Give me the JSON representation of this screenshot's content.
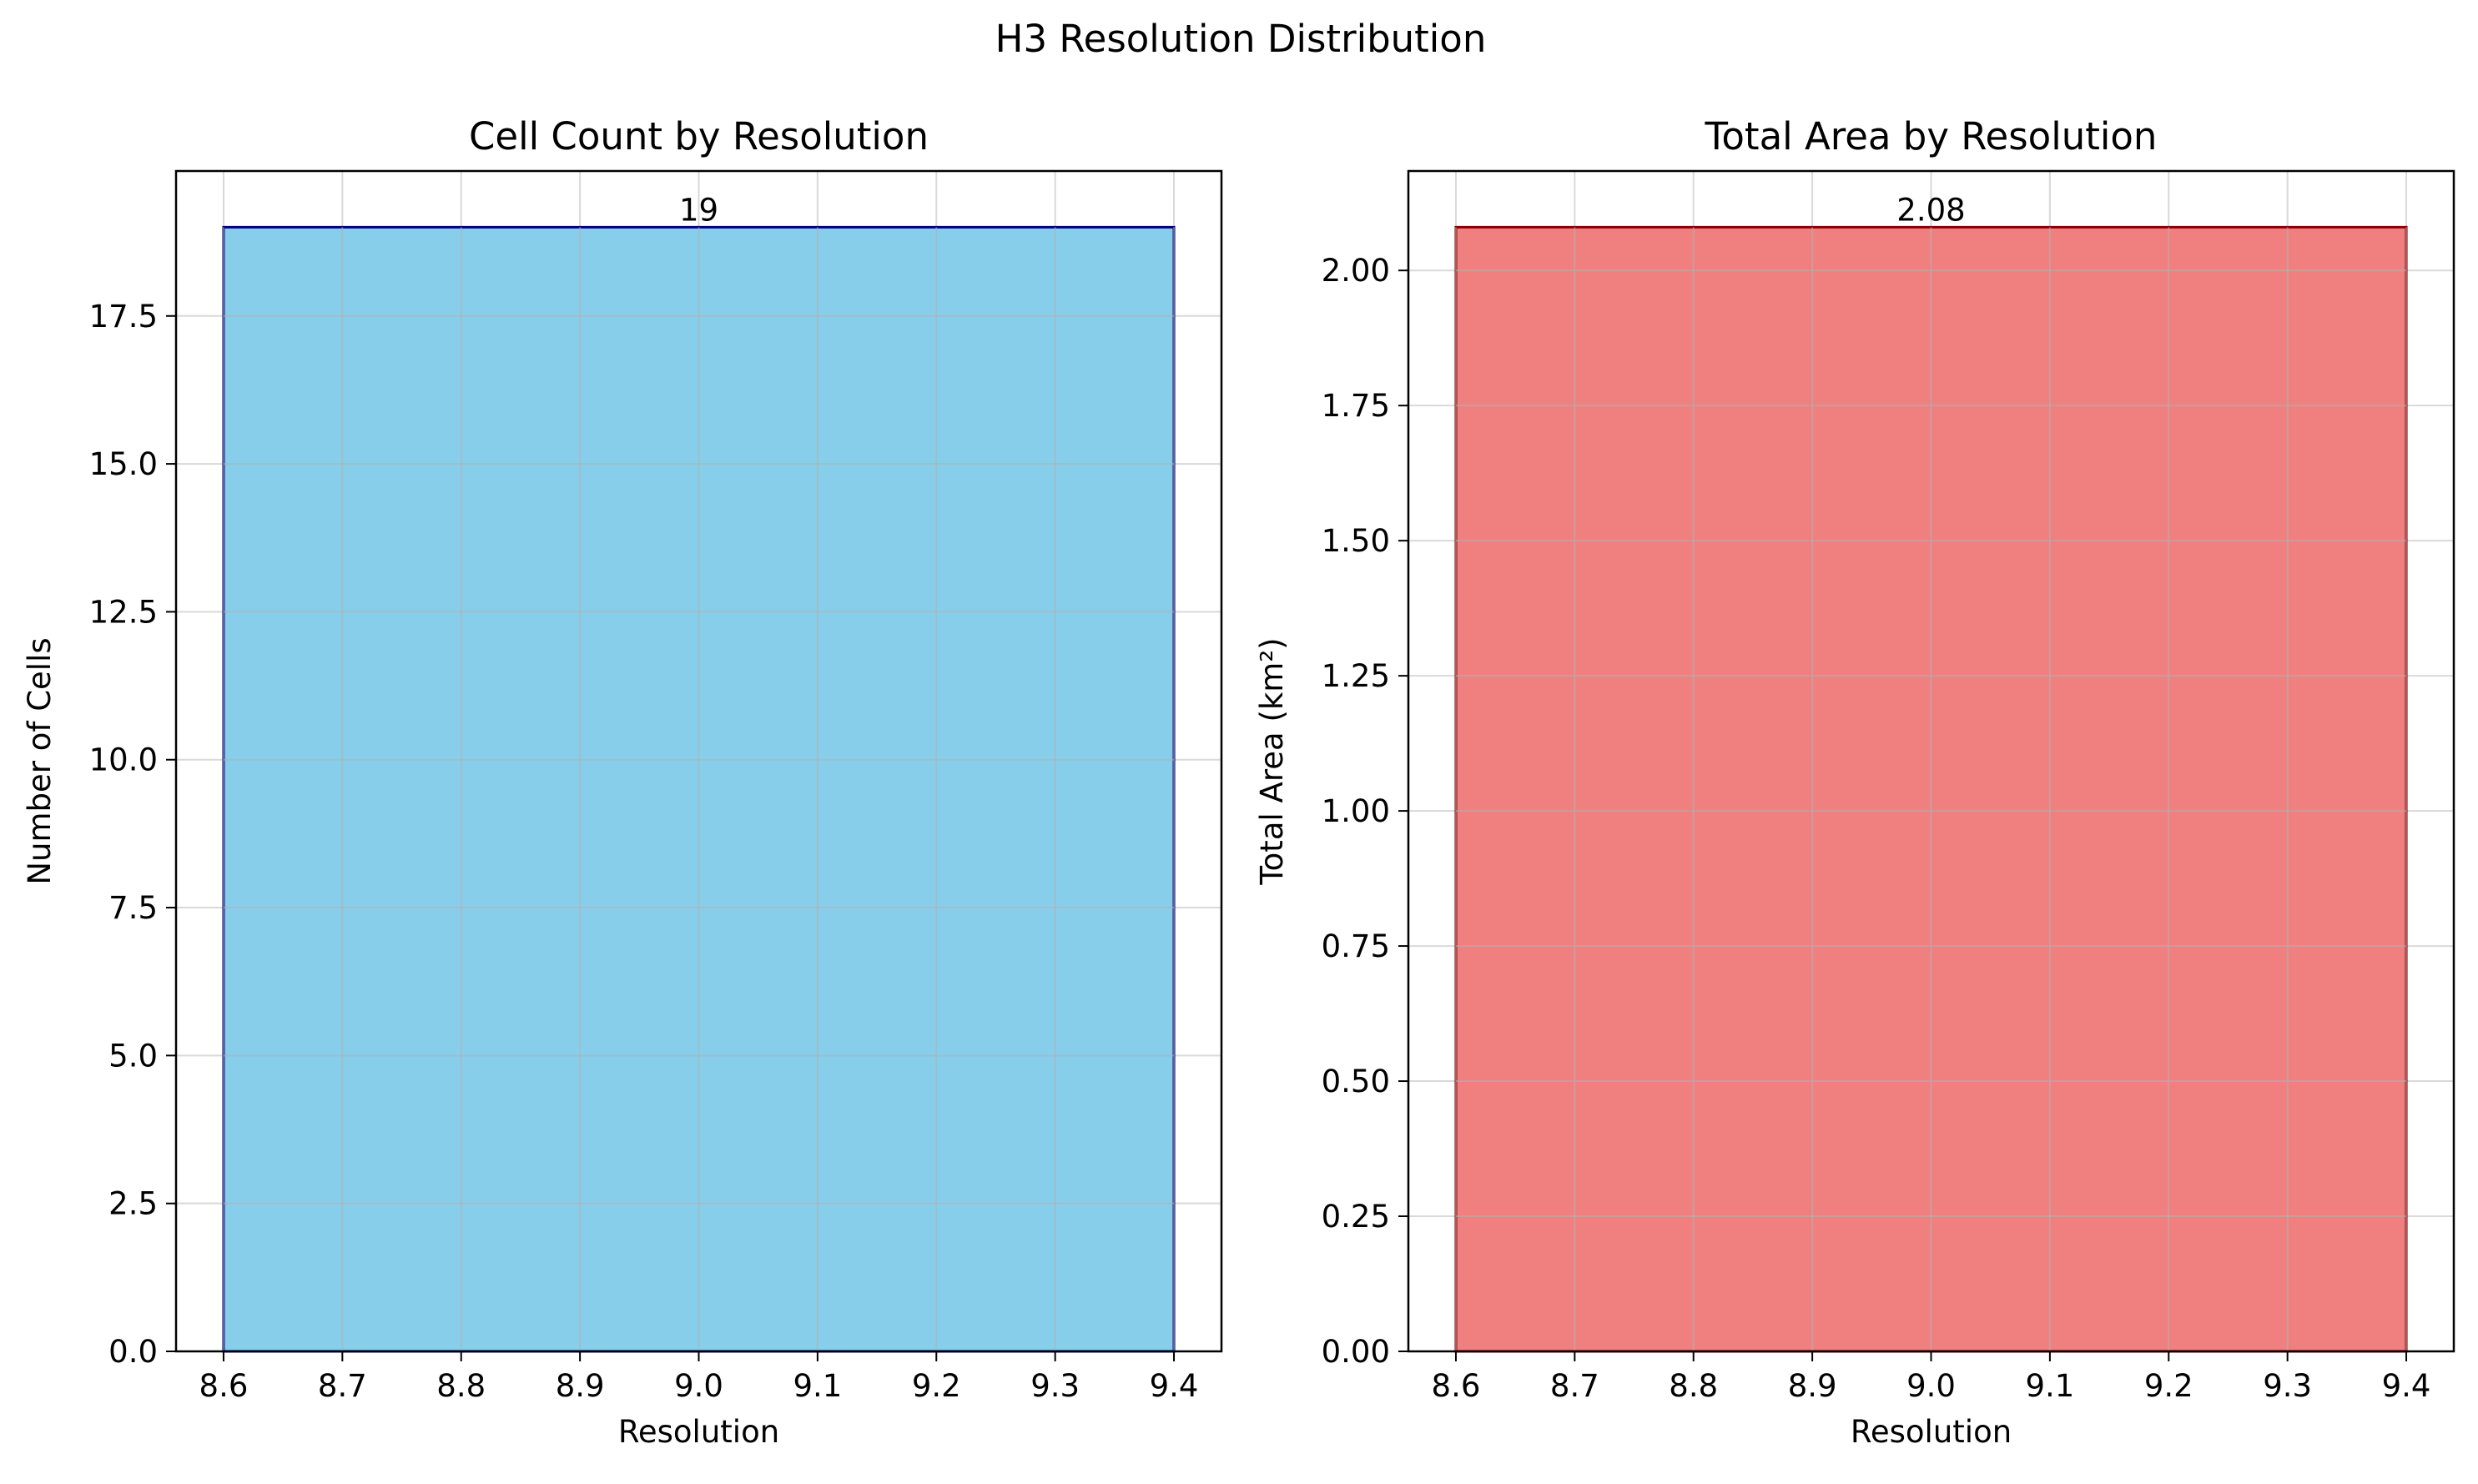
{
  "suptitle": "H3 Resolution Distribution",
  "colors": {
    "left_fill": "#87ceeb",
    "left_edge": "#000080",
    "right_fill": "#f08080",
    "right_edge": "#8b0000",
    "grid": "#d9d9d9"
  },
  "chart_data": [
    {
      "type": "bar",
      "title": "Cell Count by Resolution",
      "xlabel": "Resolution",
      "ylabel": "Number of Cells",
      "x": [
        9
      ],
      "values": [
        19
      ],
      "bar_range": [
        8.6,
        9.4
      ],
      "bar_labels": [
        "19"
      ],
      "xlim": [
        8.56,
        9.44
      ],
      "ylim": [
        0,
        19.95
      ],
      "xticks": [
        8.6,
        8.7,
        8.8,
        8.9,
        9.0,
        9.1,
        9.2,
        9.3,
        9.4
      ],
      "xtick_labels": [
        "8.6",
        "8.7",
        "8.8",
        "8.9",
        "9.0",
        "9.1",
        "9.2",
        "9.3",
        "9.4"
      ],
      "yticks": [
        0,
        2.5,
        5,
        7.5,
        10,
        12.5,
        15,
        17.5
      ],
      "ytick_labels": [
        "0.0",
        "2.5",
        "5.0",
        "7.5",
        "10.0",
        "12.5",
        "15.0",
        "17.5"
      ],
      "grid": true
    },
    {
      "type": "bar",
      "title": "Total Area by Resolution",
      "xlabel": "Resolution",
      "ylabel": "Total Area (km²)",
      "x": [
        9
      ],
      "values": [
        2.08
      ],
      "bar_range": [
        8.6,
        9.4
      ],
      "bar_labels": [
        "2.08"
      ],
      "xlim": [
        8.56,
        9.44
      ],
      "ylim": [
        0,
        2.184
      ],
      "xticks": [
        8.6,
        8.7,
        8.8,
        8.9,
        9.0,
        9.1,
        9.2,
        9.3,
        9.4
      ],
      "xtick_labels": [
        "8.6",
        "8.7",
        "8.8",
        "8.9",
        "9.0",
        "9.1",
        "9.2",
        "9.3",
        "9.4"
      ],
      "yticks": [
        0,
        0.25,
        0.5,
        0.75,
        1.0,
        1.25,
        1.5,
        1.75,
        2.0
      ],
      "ytick_labels": [
        "0.00",
        "0.25",
        "0.50",
        "0.75",
        "1.00",
        "1.25",
        "1.50",
        "1.75",
        "2.00"
      ],
      "grid": true
    }
  ]
}
